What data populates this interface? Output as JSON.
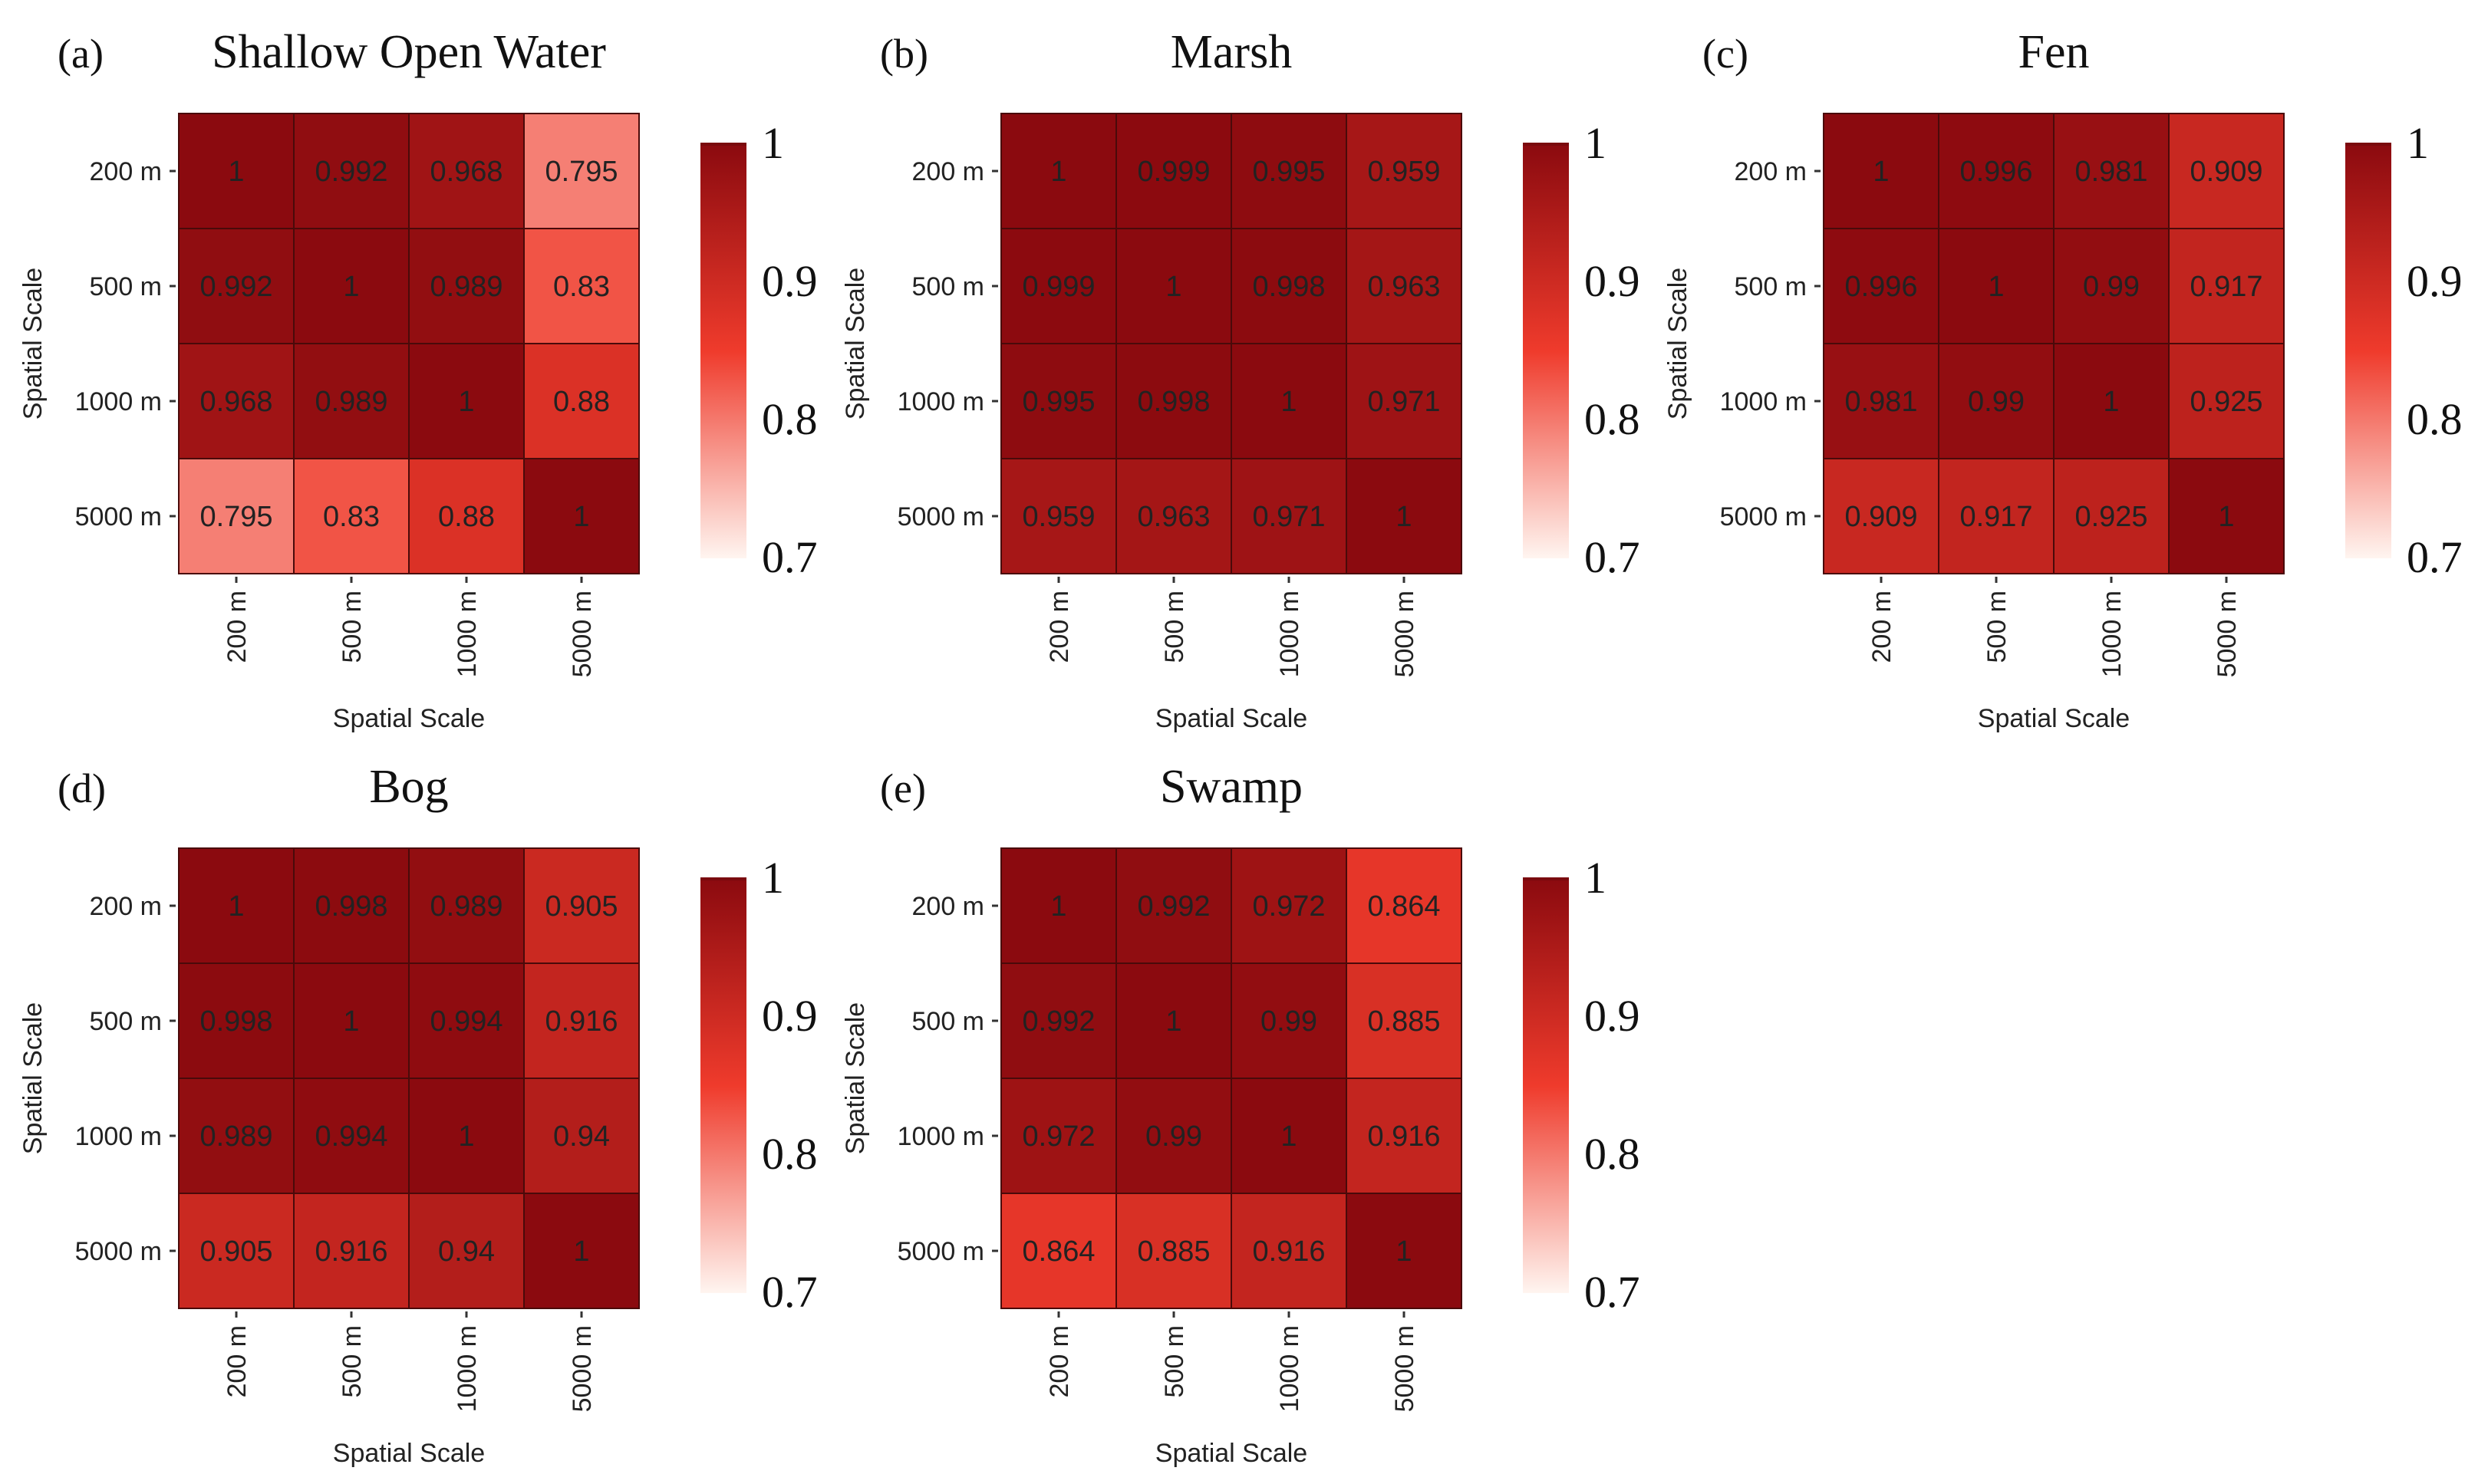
{
  "colors": {
    "scale_low": "#fff5f0",
    "scale_mid": "#ef3b2c",
    "scale_high": "#8b0a0f",
    "cell_border": "#4a0a0a"
  },
  "chart_data": [
    {
      "type": "heatmap",
      "panel": "(a)",
      "title": "Shallow Open Water",
      "xlabel": "Spatial Scale",
      "ylabel": "Spatial Scale",
      "x_categories": [
        "200 m",
        "500 m",
        "1000 m",
        "5000 m"
      ],
      "y_categories": [
        "200 m",
        "500 m",
        "1000 m",
        "5000 m"
      ],
      "values": [
        [
          1,
          0.992,
          0.968,
          0.795
        ],
        [
          0.992,
          1,
          0.989,
          0.83
        ],
        [
          0.968,
          0.989,
          1,
          0.88
        ],
        [
          0.795,
          0.83,
          0.88,
          1
        ]
      ],
      "labels": [
        [
          "1",
          "0.992",
          "0.968",
          "0.795"
        ],
        [
          "0.992",
          "1",
          "0.989",
          "0.83"
        ],
        [
          "0.968",
          "0.989",
          "1",
          "0.88"
        ],
        [
          "0.795",
          "0.83",
          "0.88",
          "1"
        ]
      ],
      "color_range": [
        0.7,
        1
      ],
      "legend_ticks": [
        "1",
        "0.9",
        "0.8",
        "0.7"
      ]
    },
    {
      "type": "heatmap",
      "panel": "(b)",
      "title": "Marsh",
      "xlabel": "Spatial Scale",
      "ylabel": "Spatial Scale",
      "x_categories": [
        "200 m",
        "500 m",
        "1000 m",
        "5000 m"
      ],
      "y_categories": [
        "200 m",
        "500 m",
        "1000 m",
        "5000 m"
      ],
      "values": [
        [
          1,
          0.999,
          0.995,
          0.959
        ],
        [
          0.999,
          1,
          0.998,
          0.963
        ],
        [
          0.995,
          0.998,
          1,
          0.971
        ],
        [
          0.959,
          0.963,
          0.971,
          1
        ]
      ],
      "labels": [
        [
          "1",
          "0.999",
          "0.995",
          "0.959"
        ],
        [
          "0.999",
          "1",
          "0.998",
          "0.963"
        ],
        [
          "0.995",
          "0.998",
          "1",
          "0.971"
        ],
        [
          "0.959",
          "0.963",
          "0.971",
          "1"
        ]
      ],
      "color_range": [
        0.7,
        1
      ],
      "legend_ticks": [
        "1",
        "0.9",
        "0.8",
        "0.7"
      ]
    },
    {
      "type": "heatmap",
      "panel": "(c)",
      "title": "Fen",
      "xlabel": "Spatial Scale",
      "ylabel": "Spatial Scale",
      "x_categories": [
        "200 m",
        "500 m",
        "1000 m",
        "5000 m"
      ],
      "y_categories": [
        "200 m",
        "500 m",
        "1000 m",
        "5000 m"
      ],
      "values": [
        [
          1,
          0.996,
          0.981,
          0.909
        ],
        [
          0.996,
          1,
          0.99,
          0.917
        ],
        [
          0.981,
          0.99,
          1,
          0.925
        ],
        [
          0.909,
          0.917,
          0.925,
          1
        ]
      ],
      "labels": [
        [
          "1",
          "0.996",
          "0.981",
          "0.909"
        ],
        [
          "0.996",
          "1",
          "0.99",
          "0.917"
        ],
        [
          "0.981",
          "0.99",
          "1",
          "0.925"
        ],
        [
          "0.909",
          "0.917",
          "0.925",
          "1"
        ]
      ],
      "color_range": [
        0.7,
        1
      ],
      "legend_ticks": [
        "1",
        "0.9",
        "0.8",
        "0.7"
      ]
    },
    {
      "type": "heatmap",
      "panel": "(d)",
      "title": "Bog",
      "xlabel": "Spatial Scale",
      "ylabel": "Spatial Scale",
      "x_categories": [
        "200 m",
        "500 m",
        "1000 m",
        "5000 m"
      ],
      "y_categories": [
        "200 m",
        "500 m",
        "1000 m",
        "5000 m"
      ],
      "values": [
        [
          1,
          0.998,
          0.989,
          0.905
        ],
        [
          0.998,
          1,
          0.994,
          0.916
        ],
        [
          0.989,
          0.994,
          1,
          0.94
        ],
        [
          0.905,
          0.916,
          0.94,
          1
        ]
      ],
      "labels": [
        [
          "1",
          "0.998",
          "0.989",
          "0.905"
        ],
        [
          "0.998",
          "1",
          "0.994",
          "0.916"
        ],
        [
          "0.989",
          "0.994",
          "1",
          "0.94"
        ],
        [
          "0.905",
          "0.916",
          "0.94",
          "1"
        ]
      ],
      "color_range": [
        0.7,
        1
      ],
      "legend_ticks": [
        "1",
        "0.9",
        "0.8",
        "0.7"
      ]
    },
    {
      "type": "heatmap",
      "panel": "(e)",
      "title": "Swamp",
      "xlabel": "Spatial Scale",
      "ylabel": "Spatial Scale",
      "x_categories": [
        "200 m",
        "500 m",
        "1000 m",
        "5000 m"
      ],
      "y_categories": [
        "200 m",
        "500 m",
        "1000 m",
        "5000 m"
      ],
      "values": [
        [
          1,
          0.992,
          0.972,
          0.864
        ],
        [
          0.992,
          1,
          0.99,
          0.885
        ],
        [
          0.972,
          0.99,
          1,
          0.916
        ],
        [
          0.864,
          0.885,
          0.916,
          1
        ]
      ],
      "labels": [
        [
          "1",
          "0.992",
          "0.972",
          "0.864"
        ],
        [
          "0.992",
          "1",
          "0.99",
          "0.885"
        ],
        [
          "0.972",
          "0.99",
          "1",
          "0.916"
        ],
        [
          "0.864",
          "0.885",
          "0.916",
          "1"
        ]
      ],
      "color_range": [
        0.7,
        1
      ],
      "legend_ticks": [
        "1",
        "0.9",
        "0.8",
        "0.7"
      ]
    }
  ]
}
